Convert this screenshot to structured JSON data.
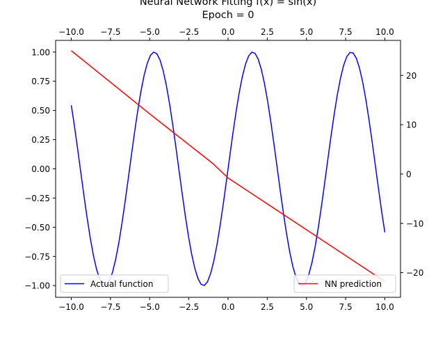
{
  "chart_data": {
    "type": "line",
    "title": "Neural Network Fitting f(x) = sin(x)",
    "subtitle": "Epoch = 0",
    "x_range": [
      -10,
      10
    ],
    "xlim": [
      -11,
      11
    ],
    "x_ticks": [
      "−10.0",
      "−7.5",
      "−5.0",
      "−2.5",
      "0.0",
      "2.5",
      "5.0",
      "7.5",
      "10.0"
    ],
    "x_tick_values": [
      -10,
      -7.5,
      -5,
      -2.5,
      0,
      2.5,
      5,
      7.5,
      10
    ],
    "x_ticks_top_and_bottom": true,
    "left_axis": {
      "ylim": [
        -1.1,
        1.1
      ],
      "ticks": [
        "−1.00",
        "−0.75",
        "−0.50",
        "−0.25",
        "0.00",
        "0.25",
        "0.50",
        "0.75",
        "1.00"
      ],
      "tick_values": [
        -1,
        -0.75,
        -0.5,
        -0.25,
        0,
        0.25,
        0.5,
        0.75,
        1
      ]
    },
    "right_axis": {
      "ylim": [
        -25,
        27.1
      ],
      "ticks": [
        "−20",
        "−10",
        "0",
        "10",
        "20"
      ],
      "tick_values": [
        -20,
        -10,
        0,
        10,
        20
      ]
    },
    "grid": false,
    "series": [
      {
        "name": "Actual function",
        "color": "#0000ff",
        "axis": "left",
        "function": "sin(x)",
        "samples": 100,
        "legend_position": "lower-left"
      },
      {
        "name": "NN prediction",
        "color": "#ff0000",
        "axis": "right",
        "x": [
          -10,
          -5,
          -1,
          0,
          5,
          10
        ],
        "y": [
          25,
          12.2,
          2.2,
          -0.8,
          -11.3,
          -21.8
        ],
        "legend_position": "lower-right"
      }
    ]
  }
}
